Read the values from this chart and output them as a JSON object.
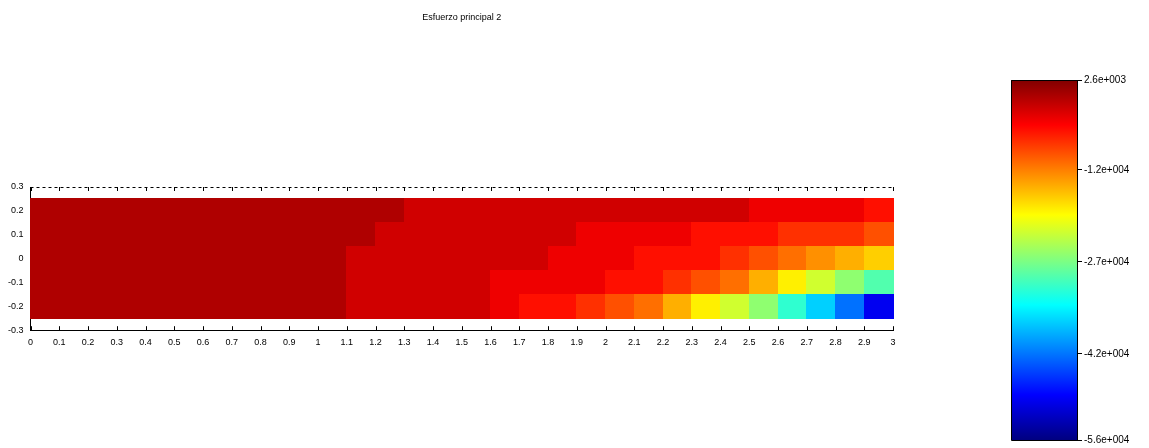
{
  "chart_data": {
    "type": "heatmap",
    "title": "Esfuerzo principal 2",
    "x": [
      0.05,
      0.15,
      0.25,
      0.35,
      0.45,
      0.55,
      0.65,
      0.75,
      0.85,
      0.95,
      1.05,
      1.15,
      1.25,
      1.35,
      1.45,
      1.55,
      1.65,
      1.75,
      1.85,
      1.95,
      2.05,
      2.15,
      2.25,
      2.35,
      2.45,
      2.55,
      2.65,
      2.75,
      2.85,
      2.95
    ],
    "y": [
      0.2,
      0.1,
      0,
      -0.1,
      -0.2
    ],
    "cells": [
      [
        -150,
        -150,
        -150,
        -150,
        -150,
        -150,
        -150,
        -150,
        -150,
        -150,
        -150,
        -150,
        -150,
        -2000,
        -2000,
        -2000,
        -2000,
        -2000,
        -2000,
        -2000,
        -2000,
        -2000,
        -2000,
        -2000,
        -2000,
        -3800,
        -3800,
        -3800,
        -3800,
        -5600
      ],
      [
        -150,
        -150,
        -150,
        -150,
        -150,
        -150,
        -150,
        -150,
        -150,
        -150,
        -150,
        -150,
        -2000,
        -2000,
        -2000,
        -2000,
        -2000,
        -2000,
        -2000,
        -3800,
        -3800,
        -3800,
        -3800,
        -5600,
        -5600,
        -5600,
        -7500,
        -7500,
        -7500,
        -9300
      ],
      [
        -150,
        -150,
        -150,
        -150,
        -150,
        -150,
        -150,
        -150,
        -150,
        -150,
        -150,
        -2000,
        -2000,
        -2000,
        -2000,
        -2000,
        -2000,
        -2000,
        -3800,
        -3800,
        -3800,
        -5600,
        -5600,
        -5600,
        -7500,
        -9300,
        -11100,
        -13000,
        -14800,
        -16600
      ],
      [
        -150,
        -150,
        -150,
        -150,
        -150,
        -150,
        -150,
        -150,
        -150,
        -150,
        -150,
        -2000,
        -2000,
        -2000,
        -2000,
        -2000,
        -3800,
        -3800,
        -3800,
        -3800,
        -5600,
        -5600,
        -7500,
        -9300,
        -11100,
        -14800,
        -18500,
        -22100,
        -25800,
        -29400
      ],
      [
        -150,
        -150,
        -150,
        -150,
        -150,
        -150,
        -150,
        -150,
        -150,
        -150,
        -150,
        -2000,
        -2000,
        -2000,
        -2000,
        -2000,
        -3800,
        -5600,
        -5600,
        -7500,
        -9300,
        -11100,
        -14800,
        -18500,
        -22100,
        -25800,
        -31300,
        -36700,
        -42200,
        -49500
      ]
    ],
    "xlim": [
      0,
      3
    ],
    "xticks": [
      0,
      0.1,
      0.2,
      0.3,
      0.4,
      0.5,
      0.6,
      0.7,
      0.8,
      0.9,
      1,
      1.1,
      1.2,
      1.3,
      1.4,
      1.5,
      1.6,
      1.7,
      1.8,
      1.9,
      2,
      2.1,
      2.2,
      2.3,
      2.4,
      2.5,
      2.6,
      2.7,
      2.8,
      2.9,
      3
    ],
    "ylim": [
      -0.3,
      0.3
    ],
    "yticks": [
      -0.3,
      -0.2,
      -0.1,
      0,
      0.1,
      0.2,
      0.3
    ],
    "clim": [
      -56000,
      2600
    ],
    "cticks": [
      {
        "value": 2600,
        "label": "2.6e+003"
      },
      {
        "value": -12000,
        "label": "-1.2e+004"
      },
      {
        "value": -27000,
        "label": "-2.7e+004"
      },
      {
        "value": -42000,
        "label": "-4.2e+004"
      },
      {
        "value": -56000,
        "label": "-5.6e+004"
      }
    ],
    "grid": false,
    "legend": false
  }
}
